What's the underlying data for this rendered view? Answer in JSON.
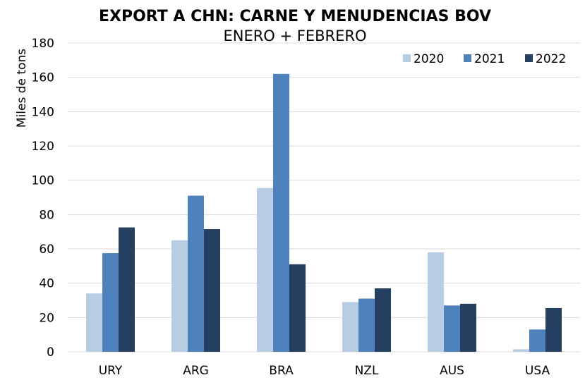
{
  "chart_data": {
    "type": "bar",
    "title": "EXPORT A CHN: CARNE Y MENUDENCIAS BOV",
    "subtitle": "ENERO + FEBRERO",
    "xlabel": "",
    "ylabel": "Miles de tons",
    "ylim": [
      0,
      180
    ],
    "yticks": [
      0,
      20,
      40,
      60,
      80,
      100,
      120,
      140,
      160,
      180
    ],
    "grid": true,
    "legend_position": "top-right",
    "categories": [
      "URY",
      "ARG",
      "BRA",
      "NZL",
      "AUS",
      "USA"
    ],
    "series": [
      {
        "name": "2020",
        "color": "#b8cce4",
        "values": [
          34,
          65,
          95.5,
          29,
          58,
          1.5
        ]
      },
      {
        "name": "2021",
        "color": "#4f81bd",
        "values": [
          57.5,
          91,
          162,
          31,
          27,
          13
        ]
      },
      {
        "name": "2022",
        "color": "#243f60",
        "values": [
          72.5,
          71.5,
          51,
          37,
          28,
          25.5
        ]
      }
    ]
  }
}
